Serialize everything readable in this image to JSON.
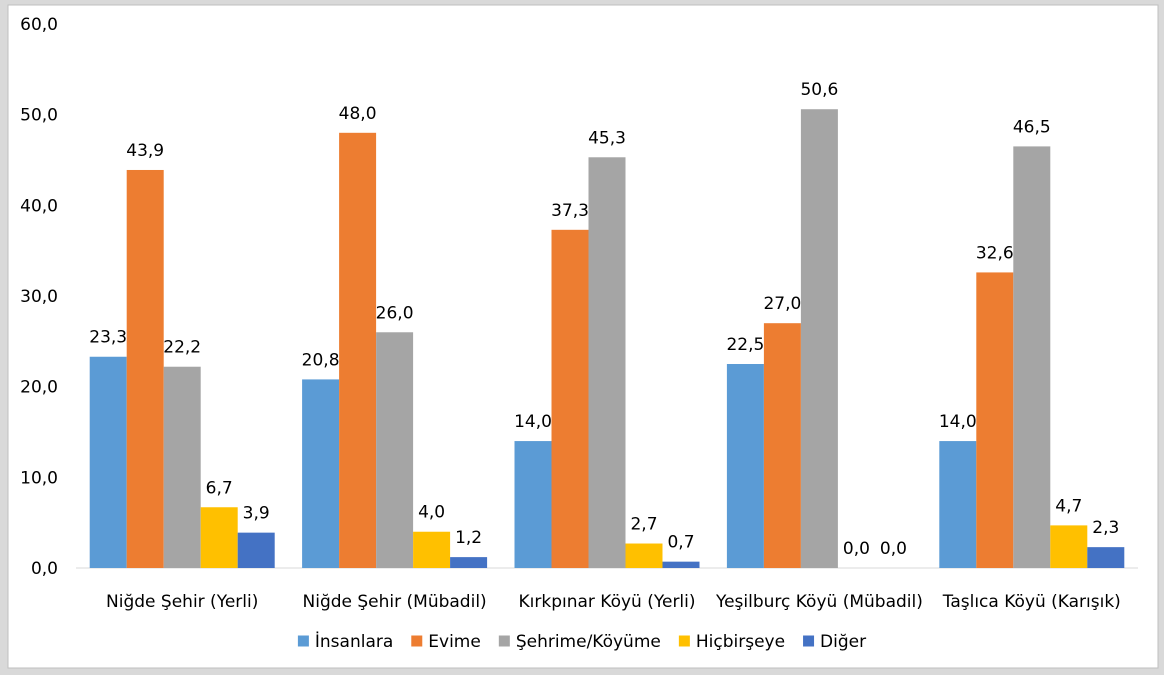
{
  "chart_data": {
    "type": "bar",
    "title": "",
    "xlabel": "",
    "ylabel": "",
    "ylim": [
      0,
      60
    ],
    "ytick_step": 10,
    "ytick_labels": [
      "0,0",
      "10,0",
      "20,0",
      "30,0",
      "40,0",
      "50,0",
      "60,0"
    ],
    "grid": false,
    "legend_position": "bottom",
    "categories": [
      "Niğde Şehir (Yerli)",
      "Niğde Şehir (Mübadil)",
      "Kırkpınar Köyü (Yerli)",
      "Yeşilburç Köyü (Mübadil)",
      "Taşlıca Köyü (Karışık)"
    ],
    "series": [
      {
        "name": "İnsanlara",
        "color": "#5b9bd5",
        "values": [
          23.3,
          20.8,
          14.0,
          22.5,
          14.0
        ],
        "labels": [
          "23,3",
          "20,8",
          "14,0",
          "22,5",
          "14,0"
        ]
      },
      {
        "name": "Evime",
        "color": "#ed7d31",
        "values": [
          43.9,
          48.0,
          37.3,
          27.0,
          32.6
        ],
        "labels": [
          "43,9",
          "48,0",
          "37,3",
          "27,0",
          "32,6"
        ]
      },
      {
        "name": "Şehrime/Köyüme",
        "color": "#a5a5a5",
        "values": [
          22.2,
          26.0,
          45.3,
          50.6,
          46.5
        ],
        "labels": [
          "22,2",
          "26,0",
          "45,3",
          "50,6",
          "46,5"
        ]
      },
      {
        "name": "Hiçbirşeye",
        "color": "#ffc000",
        "values": [
          6.7,
          4.0,
          2.7,
          0.0,
          4.7
        ],
        "labels": [
          "6,7",
          "4,0",
          "2,7",
          "0,0",
          "4,7"
        ]
      },
      {
        "name": "Diğer",
        "color": "#4472c4",
        "values": [
          3.9,
          1.2,
          0.7,
          0.0,
          2.3
        ],
        "labels": [
          "3,9",
          "1,2",
          "0,7",
          "0,0",
          "2,3"
        ]
      }
    ]
  }
}
